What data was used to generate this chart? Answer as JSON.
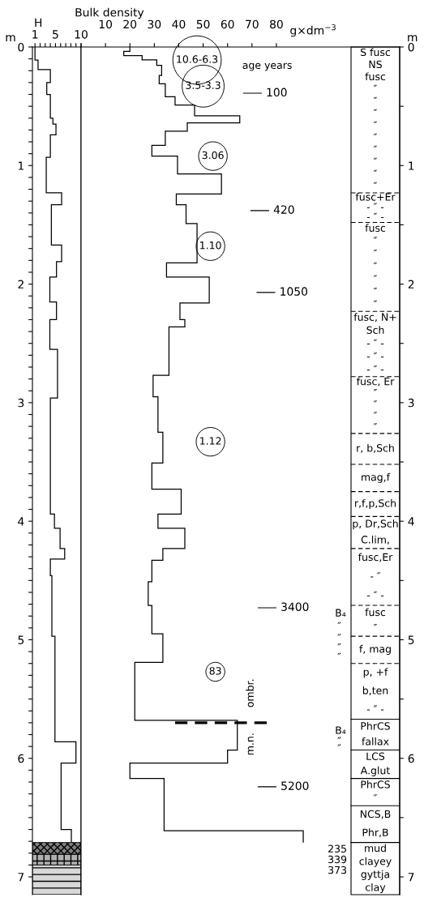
{
  "chart_data": [
    {
      "type": "histogram",
      "orientation": "horizontal",
      "xlabel": "H",
      "ylabel": "m",
      "color": "#000000",
      "bins": [
        0,
        0.11,
        0.19,
        0.3,
        0.4,
        0.6,
        0.65,
        0.74,
        0.93,
        1.23,
        1.33,
        1.67,
        1.81,
        1.94,
        2.15,
        2.3,
        2.55,
        2.96,
        3.94,
        4.06,
        4.23,
        4.32,
        4.46,
        4.97,
        5.86,
        6.04,
        6.6,
        6.71
      ],
      "values": [
        1,
        1.6,
        4,
        3.3,
        4,
        4.5,
        5.1,
        4,
        3.2,
        6.2,
        4.2,
        6.2,
        5.2,
        3.9,
        5.2,
        3.9,
        5.4,
        4,
        4.8,
        5.9,
        6.8,
        4,
        4.3,
        4.9,
        9,
        6.1,
        8.1
      ],
      "xlim": [
        0.5,
        10
      ],
      "xticks": [
        1,
        {
          "value": 2,
          "label": null
        },
        {
          "value": 3,
          "label": null
        },
        {
          "value": 4,
          "label": null
        },
        5,
        {
          "value": 6,
          "label": null
        },
        {
          "value": 7,
          "label": null
        },
        {
          "value": 8,
          "label": null
        },
        {
          "value": 9,
          "label": null
        },
        10
      ],
      "ylim": [
        7.15,
        0
      ],
      "yticks": [
        0,
        {
          "value": 0.1,
          "label": null
        },
        {
          "value": 0.2,
          "label": null
        },
        {
          "value": 0.3,
          "label": null
        },
        {
          "value": 0.4,
          "label": null
        },
        {
          "value": 0.5,
          "label": null
        },
        {
          "value": 0.6,
          "label": null
        },
        {
          "value": 0.7,
          "label": null
        },
        {
          "value": 0.8,
          "label": null
        },
        {
          "value": 0.9,
          "label": null
        },
        1,
        {
          "value": 1.1,
          "label": null
        },
        {
          "value": 1.2,
          "label": null
        },
        {
          "value": 1.3,
          "label": null
        },
        {
          "value": 1.4,
          "label": null
        },
        {
          "value": 1.5,
          "label": null
        },
        {
          "value": 1.6,
          "label": null
        },
        {
          "value": 1.7,
          "label": null
        },
        {
          "value": 1.8,
          "label": null
        },
        {
          "value": 1.9,
          "label": null
        },
        2,
        {
          "value": 2.1,
          "label": null
        },
        {
          "value": 2.2,
          "label": null
        },
        {
          "value": 2.3,
          "label": null
        },
        {
          "value": 2.4,
          "label": null
        },
        {
          "value": 2.5,
          "label": null
        },
        {
          "value": 2.6,
          "label": null
        },
        {
          "value": 2.7,
          "label": null
        },
        {
          "value": 2.8,
          "label": null
        },
        {
          "value": 2.9,
          "label": null
        },
        3,
        {
          "value": 3.1,
          "label": null
        },
        {
          "value": 3.2,
          "label": null
        },
        {
          "value": 3.3,
          "label": null
        },
        {
          "value": 3.4,
          "label": null
        },
        {
          "value": 3.5,
          "label": null
        },
        {
          "value": 3.6,
          "label": null
        },
        {
          "value": 3.7,
          "label": null
        },
        {
          "value": 3.8,
          "label": null
        },
        {
          "value": 3.9,
          "label": null
        },
        4,
        {
          "value": 4.1,
          "label": null
        },
        {
          "value": 4.2,
          "label": null
        },
        {
          "value": 4.3,
          "label": null
        },
        {
          "value": 4.4,
          "label": null
        },
        {
          "value": 4.5,
          "label": null
        },
        {
          "value": 4.6,
          "label": null
        },
        {
          "value": 4.7,
          "label": null
        },
        {
          "value": 4.8,
          "label": null
        },
        {
          "value": 4.9,
          "label": null
        },
        5,
        {
          "value": 5.1,
          "label": null
        },
        {
          "value": 5.2,
          "label": null
        },
        {
          "value": 5.3,
          "label": null
        },
        {
          "value": 5.4,
          "label": null
        },
        {
          "value": 5.5,
          "label": null
        },
        {
          "value": 5.6,
          "label": null
        },
        {
          "value": 5.7,
          "label": null
        },
        {
          "value": 5.8,
          "label": null
        },
        {
          "value": 5.9,
          "label": null
        },
        6,
        {
          "value": 6.1,
          "label": null
        },
        {
          "value": 6.2,
          "label": null
        },
        {
          "value": 6.3,
          "label": null
        },
        {
          "value": 6.4,
          "label": null
        },
        {
          "value": 6.5,
          "label": null
        },
        {
          "value": 6.6,
          "label": null
        },
        {
          "value": 6.7,
          "label": null
        },
        {
          "value": 6.8,
          "label": null
        },
        {
          "value": 6.9,
          "label": null
        },
        7
      ],
      "bands": [
        {
          "axis": "y",
          "from": 6.71,
          "to": 6.81,
          "color": "#808080"
        },
        {
          "axis": "y",
          "from": 6.81,
          "to": 6.9,
          "color": "#b0b0b0"
        },
        {
          "axis": "y",
          "from": 6.9,
          "to": 7.15,
          "color": "#d8d8d8"
        }
      ]
    },
    {
      "type": "histogram",
      "orientation": "horizontal",
      "title": "Bulk density",
      "xlabel": "g×dm$^{−3}$",
      "ylabel": "m",
      "color": "#000000",
      "bins": [
        0,
        0.036,
        0.072,
        0.108,
        0.155,
        0.24,
        0.31,
        0.42,
        0.49,
        0.58,
        0.64,
        0.71,
        0.83,
        0.92,
        1.07,
        1.24,
        1.33,
        1.49,
        1.82,
        1.94,
        2.16,
        2.3,
        2.36,
        2.77,
        2.95,
        3.25,
        3.51,
        3.73,
        3.94,
        4.06,
        4.23,
        4.33,
        4.51,
        4.71,
        4.95,
        5.19,
        5.68,
        5.93,
        6.04,
        6.17,
        6.61,
        6.71
      ],
      "values": [
        20,
        17.5,
        25,
        31,
        33,
        32,
        34.5,
        38.5,
        46.5,
        65,
        43.5,
        34.5,
        29,
        39.5,
        57.5,
        39,
        43,
        47.5,
        35,
        52.5,
        40.5,
        42.5,
        36,
        29.5,
        31.5,
        33.5,
        29,
        41,
        31.5,
        42.5,
        33.5,
        29,
        27.5,
        29,
        33.5,
        22,
        64,
        60,
        20,
        34,
        91
      ],
      "xlim": [
        0,
        130.5
      ],
      "xticks": [
        {
          "value": 0,
          "label": null
        },
        10,
        20,
        30,
        40,
        50,
        60,
        70,
        80
      ],
      "ylim": [
        7.15,
        0
      ],
      "yticks": [
        0,
        {
          "value": 0.5,
          "label": null
        },
        1,
        {
          "value": 1.5,
          "label": null
        },
        2,
        {
          "value": 2.5,
          "label": null
        },
        3,
        {
          "value": 3.5,
          "label": null
        },
        4,
        {
          "value": 4.5,
          "label": null
        },
        5,
        {
          "value": 5.5,
          "label": null
        },
        6,
        {
          "value": 6.5,
          "label": null
        },
        7
      ],
      "ref_lines": [
        {
          "axis": "y",
          "value": 5.7,
          "line_style": "dashed"
        },
        {
          "axis": "y",
          "value": 1.23,
          "line_style": "dashed"
        },
        {
          "axis": "y",
          "value": 1.48,
          "line_style": "dashed"
        },
        {
          "axis": "y",
          "value": 2.23,
          "line_style": "dashed"
        },
        {
          "axis": "y",
          "value": 2.78,
          "line_style": "dashed"
        },
        {
          "axis": "y",
          "value": 3.26,
          "line_style": "dashed"
        },
        {
          "axis": "y",
          "value": 3.52,
          "line_style": "dashed"
        },
        {
          "axis": "y",
          "value": 3.75,
          "line_style": "dashed"
        },
        {
          "axis": "y",
          "value": 3.96,
          "line_style": "dashed"
        },
        {
          "axis": "y",
          "value": 4.23,
          "line_style": "dashed"
        },
        {
          "axis": "y",
          "value": 4.71,
          "line_style": "dashed"
        },
        {
          "axis": "y",
          "value": 4.97,
          "line_style": "dashed"
        },
        {
          "axis": "y",
          "value": 5.2,
          "line_style": "dashed"
        },
        {
          "axis": "y",
          "value": 5.67,
          "line_style": "solid"
        },
        {
          "axis": "y",
          "value": 5.93,
          "line_style": "solid"
        },
        {
          "axis": "y",
          "value": 6.17,
          "line_style": "solid"
        },
        {
          "axis": "y",
          "value": 6.4,
          "line_style": "solid"
        },
        {
          "axis": "y",
          "value": 6.71,
          "line_style": "solid"
        }
      ],
      "annotations": [
        "age years",
        "10.6-6.3",
        "3.5-3.3",
        "3.06",
        "1.10",
        "1.12",
        "83",
        "100",
        "420",
        "1050",
        "3400",
        "5200",
        "ombr.",
        "m.n.",
        "B₄",
        "″",
        "″",
        "″",
        "″",
        "B₄",
        "″",
        "″",
        "235",
        "339",
        "373",
        "S fusc\nNS\nfusc\n″\n″\n″\n″\n″\n″\n″\n″\n″",
        "fusc+Er\n- ″ -\n- ″ -",
        "fusc\n″\n″\n″\n″\n″\n″",
        "fusc, N+\nSch\n- ″ -\n- ″ -\n- ″ -",
        "fusc, Er\n″\n″\n″\n″",
        "r, b,Sch",
        "mag,f",
        "r,f,p,Sch",
        "p, Dr,Sch\nC.lim,",
        "fusc,Er\n- ″\n- ″ -",
        "fusc\n″",
        "f, mag",
        "p, +f\nb,ten\n- ″ -",
        "PhrCS\nfallax",
        "LCS\nA.glut",
        "PhrCS\n″",
        "NCS,B\nPhr,B",
        "mud\nclayey\ngyttja\nclay"
      ]
    }
  ]
}
